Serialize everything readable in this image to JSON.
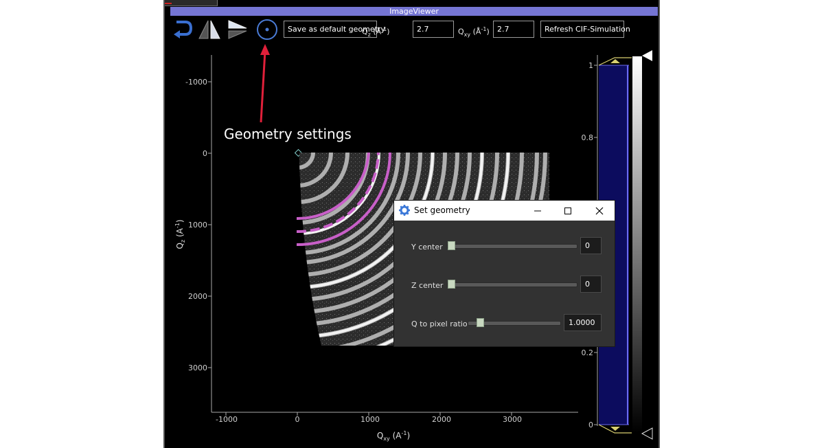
{
  "window": {
    "title": "ImageViewer"
  },
  "toolbar": {
    "save_geometry_label": "Save as default geometry",
    "qz_label": "Q",
    "qz_sub": "z",
    "qz_unit": " (Å",
    "qz_sup": "-1",
    "qz_close": ")",
    "qz_value": "2.7",
    "qxy_label": "Q",
    "qxy_sub": "xy",
    "qxy_unit": " (Å",
    "qxy_sup": "-1",
    "qxy_close": ")",
    "qxy_value": "2.7",
    "refresh_label": "Refresh CIF-Simulation"
  },
  "annotation": {
    "text": "Geometry settings"
  },
  "plot": {
    "x_axis": {
      "label": "Q",
      "label_sub": "xy",
      "label_unit": " (A",
      "label_sup": "-1",
      "label_close": ")",
      "ticks": [
        "-1000",
        "0",
        "1000",
        "2000",
        "3000"
      ]
    },
    "y_axis": {
      "label": "Q",
      "label_sub": "z",
      "label_unit": " (A",
      "label_sup": "-1",
      "label_close": ")",
      "ticks": [
        "-1000",
        "0",
        "1000",
        "2000",
        "3000"
      ]
    }
  },
  "histogram": {
    "ticks": [
      "1",
      "0.8",
      "0.2",
      "0"
    ]
  },
  "dialog": {
    "title": "Set geometry",
    "rows": [
      {
        "label": "Y center",
        "value": "0"
      },
      {
        "label": "Z center",
        "value": "0"
      },
      {
        "label": "Q to pixel ratio",
        "value": "1.0000"
      }
    ]
  },
  "colors": {
    "accent": "#7575d3",
    "ring": "#c85fc8",
    "annotation_arrow": "#e0203a",
    "histogram_fill": "#0c0c5e"
  }
}
